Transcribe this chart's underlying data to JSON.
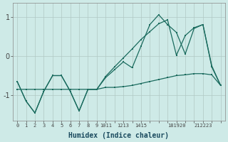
{
  "xlabel": "Humidex (Indice chaleur)",
  "bg_color": "#ceeae7",
  "grid_color": "#b0c8c4",
  "line_color": "#1a6b5e",
  "x_data": [
    0,
    1,
    2,
    3,
    4,
    5,
    6,
    7,
    8,
    9,
    10,
    11,
    12,
    13,
    14,
    15,
    16,
    17,
    18,
    19,
    20,
    21,
    22,
    23
  ],
  "x_tick_labels": [
    "0",
    "1",
    "2",
    "3",
    "4",
    "5",
    "6",
    "7",
    "8",
    "9",
    "1011",
    "12",
    "13",
    "14",
    "15",
    "",
    "181920",
    "",
    "21",
    "22",
    "23",
    "",
    "",
    ""
  ],
  "y_main": [
    -0.65,
    -1.15,
    -1.45,
    -0.9,
    -0.5,
    -0.5,
    -0.9,
    -1.4,
    -0.85,
    -0.85,
    -0.55,
    -0.35,
    -0.15,
    -0.3,
    0.25,
    0.8,
    1.05,
    0.8,
    0.6,
    0.05,
    0.7,
    0.8,
    -0.25,
    -0.75
  ],
  "y_flat": [
    -0.85,
    -0.85,
    -0.85,
    -0.85,
    -0.85,
    -0.85,
    -0.85,
    -0.85,
    -0.85,
    -0.85,
    -0.8,
    -0.8,
    -0.78,
    -0.75,
    -0.7,
    -0.65,
    -0.6,
    -0.55,
    -0.5,
    -0.48,
    -0.45,
    -0.45,
    -0.48,
    -0.75
  ],
  "y_diag": [
    -0.65,
    -1.15,
    -1.45,
    -0.9,
    -0.5,
    -0.5,
    -0.9,
    -1.4,
    -0.85,
    -0.85,
    -0.52,
    -0.28,
    -0.05,
    0.18,
    0.42,
    0.62,
    0.82,
    0.92,
    0.02,
    0.52,
    0.72,
    0.8,
    -0.28,
    -0.75
  ],
  "ylim": [
    -1.65,
    1.35
  ],
  "yticks": [
    -1,
    0,
    1
  ],
  "xlim": [
    -0.5,
    23.5
  ]
}
